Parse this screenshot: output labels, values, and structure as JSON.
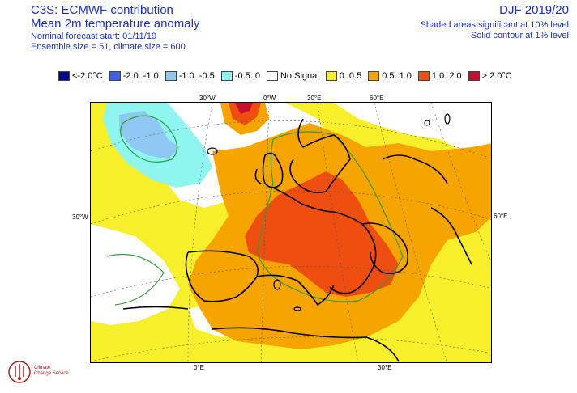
{
  "header": {
    "title": "C3S: ECMWF contribution",
    "subtitle": "Mean 2m temperature anomaly",
    "forecast_start": "Nominal forecast start: 01/11/19",
    "ensemble": "Ensemble size = 51, climate size = 600",
    "period": "DJF 2019/20",
    "significance_shaded": "Shaded areas significant at 10% level",
    "significance_contour": "Solid contour at 1% level"
  },
  "legend": [
    {
      "label": "<-2.0°C",
      "color": "#000a8c"
    },
    {
      "label": "-2.0..-1.0",
      "color": "#3c5ff0"
    },
    {
      "label": "-1.0..-0.5",
      "color": "#8fc8f2"
    },
    {
      "label": "-0.5..0",
      "color": "#8ef5ef"
    },
    {
      "label": "No Signal",
      "color": "#ffffff"
    },
    {
      "label": "0..0.5",
      "color": "#f7ef2a"
    },
    {
      "label": "0.5..1.0",
      "color": "#f6a400"
    },
    {
      "label": "1.0..2.0",
      "color": "#ee4f10"
    },
    {
      "label": "> 2.0°C",
      "color": "#c8102e"
    }
  ],
  "map": {
    "coords": {
      "top_30w": "30°W",
      "top_0w": "0°W",
      "top_30e": "30°E",
      "top_60e": "60°E",
      "left_30w": "30°W",
      "right_60e": "60°E",
      "bottom_0e": "0°E",
      "bottom_30e": "30°E"
    }
  },
  "logo": {
    "line1": "Climate",
    "line2": "Change Service"
  }
}
